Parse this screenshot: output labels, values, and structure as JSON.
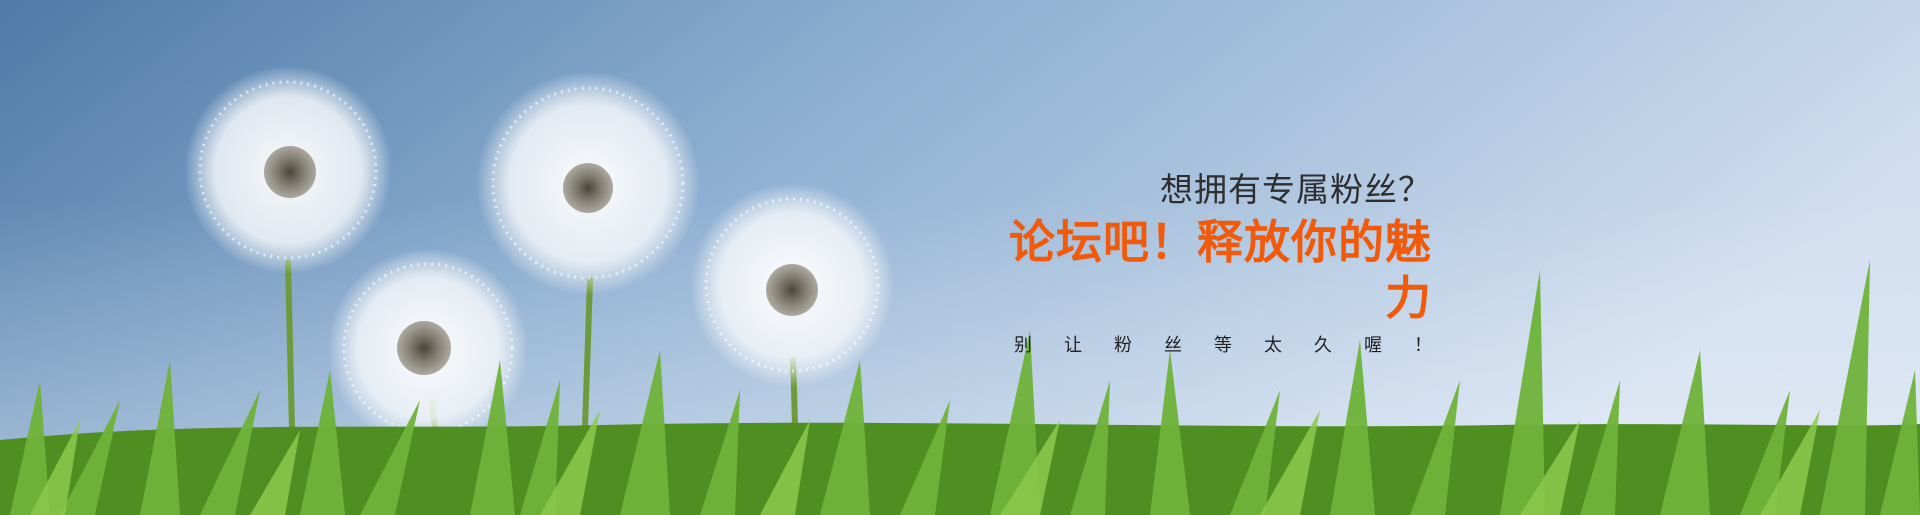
{
  "banner": {
    "question": "想拥有专属粉丝？",
    "headline": "论坛吧！释放你的魅力",
    "subline": "别让粉丝等太久喔！"
  },
  "colors": {
    "sky_top": "#5f88b4",
    "sky_bottom": "#c9d8ea",
    "headline": "#f05a0a",
    "grass": "#5ea82a"
  },
  "decor": {
    "flowers": [
      "dandelion",
      "dandelion",
      "dandelion",
      "dandelion"
    ],
    "ground": "grass"
  }
}
